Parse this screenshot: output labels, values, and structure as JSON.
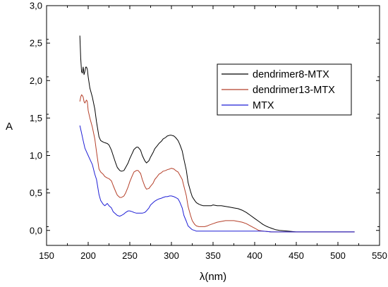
{
  "chart_data": {
    "type": "line",
    "title": "",
    "xlabel": "λ(nm)",
    "ylabel": "A",
    "xlim": [
      150,
      550
    ],
    "ylim": [
      -0.2,
      3.0
    ],
    "x_ticks": [
      150,
      200,
      250,
      300,
      350,
      400,
      450,
      500,
      550
    ],
    "x_tick_labels": [
      "150",
      "200",
      "250",
      "300",
      "350",
      "400",
      "450",
      "500",
      "550"
    ],
    "y_ticks": [
      0.0,
      0.5,
      1.0,
      1.5,
      2.0,
      2.5,
      3.0
    ],
    "y_tick_labels": [
      "0,0",
      "0,5",
      "1,0",
      "1,5",
      "2,0",
      "2,5",
      "3,0"
    ],
    "grid": false,
    "legend_position": "top-right",
    "series": [
      {
        "name": "dendrimer8-MTX",
        "color": "#000000",
        "x": [
          190,
          191,
          192,
          193,
          194,
          195,
          196,
          197,
          198,
          199,
          200,
          202,
          205,
          208,
          210,
          213,
          215,
          218,
          220,
          223,
          225,
          228,
          230,
          233,
          235,
          238,
          240,
          243,
          245,
          248,
          250,
          253,
          255,
          258,
          260,
          263,
          265,
          268,
          270,
          273,
          275,
          278,
          280,
          283,
          285,
          288,
          290,
          293,
          295,
          298,
          300,
          303,
          305,
          308,
          310,
          313,
          315,
          318,
          320,
          323,
          325,
          328,
          330,
          333,
          335,
          338,
          340,
          343,
          345,
          348,
          350,
          355,
          360,
          365,
          370,
          375,
          380,
          385,
          390,
          395,
          400,
          405,
          410,
          415,
          420,
          425,
          430,
          440,
          450,
          460,
          470,
          480,
          490,
          500,
          510,
          520
        ],
        "y": [
          2.6,
          2.3,
          2.12,
          2.1,
          2.18,
          2.08,
          2.12,
          2.18,
          2.18,
          2.15,
          2.05,
          1.9,
          1.78,
          1.62,
          1.45,
          1.25,
          1.2,
          1.18,
          1.17,
          1.16,
          1.14,
          1.07,
          1.0,
          0.9,
          0.84,
          0.8,
          0.79,
          0.8,
          0.84,
          0.9,
          0.96,
          1.03,
          1.08,
          1.11,
          1.11,
          1.07,
          1.0,
          0.93,
          0.9,
          0.93,
          0.98,
          1.04,
          1.09,
          1.13,
          1.16,
          1.19,
          1.22,
          1.24,
          1.26,
          1.27,
          1.27,
          1.26,
          1.24,
          1.2,
          1.15,
          1.06,
          0.95,
          0.8,
          0.64,
          0.52,
          0.45,
          0.4,
          0.37,
          0.35,
          0.34,
          0.33,
          0.33,
          0.33,
          0.33,
          0.33,
          0.34,
          0.33,
          0.33,
          0.32,
          0.31,
          0.3,
          0.29,
          0.27,
          0.24,
          0.2,
          0.16,
          0.12,
          0.08,
          0.05,
          0.03,
          0.01,
          0.0,
          -0.01,
          -0.02,
          -0.02,
          -0.02,
          -0.02,
          -0.02,
          -0.02,
          -0.02,
          -0.02
        ]
      },
      {
        "name": "dendrimer13-MTX",
        "color": "#b5402a",
        "x": [
          190,
          191,
          192,
          193,
          194,
          195,
          196,
          197,
          198,
          199,
          200,
          202,
          205,
          208,
          210,
          213,
          215,
          218,
          220,
          223,
          225,
          228,
          230,
          233,
          235,
          238,
          240,
          243,
          245,
          248,
          250,
          253,
          255,
          258,
          260,
          263,
          265,
          268,
          270,
          273,
          275,
          278,
          280,
          283,
          285,
          288,
          290,
          293,
          295,
          298,
          300,
          303,
          305,
          308,
          310,
          313,
          315,
          318,
          320,
          323,
          325,
          328,
          330,
          333,
          335,
          338,
          340,
          343,
          345,
          350,
          355,
          360,
          365,
          370,
          375,
          380,
          385,
          390,
          395,
          400,
          405,
          410,
          420,
          430,
          440,
          450,
          460,
          470,
          480,
          490,
          500,
          510,
          520
        ],
        "y": [
          1.72,
          1.78,
          1.81,
          1.8,
          1.78,
          1.72,
          1.7,
          1.72,
          1.74,
          1.72,
          1.6,
          1.5,
          1.38,
          1.22,
          1.05,
          0.82,
          0.78,
          0.75,
          0.72,
          0.7,
          0.69,
          0.66,
          0.6,
          0.52,
          0.47,
          0.44,
          0.44,
          0.46,
          0.5,
          0.58,
          0.65,
          0.73,
          0.78,
          0.8,
          0.8,
          0.76,
          0.68,
          0.59,
          0.55,
          0.56,
          0.59,
          0.63,
          0.68,
          0.72,
          0.75,
          0.77,
          0.79,
          0.8,
          0.81,
          0.82,
          0.83,
          0.82,
          0.8,
          0.78,
          0.74,
          0.68,
          0.59,
          0.46,
          0.32,
          0.2,
          0.13,
          0.08,
          0.06,
          0.05,
          0.05,
          0.05,
          0.05,
          0.06,
          0.07,
          0.09,
          0.11,
          0.12,
          0.13,
          0.13,
          0.13,
          0.12,
          0.11,
          0.09,
          0.06,
          0.03,
          0.0,
          -0.01,
          -0.02,
          -0.02,
          -0.02,
          -0.02,
          -0.02,
          -0.02,
          -0.02,
          -0.02,
          -0.02,
          -0.02,
          -0.02
        ]
      },
      {
        "name": "MTX",
        "color": "#1f1fd6",
        "x": [
          190,
          192,
          194,
          196,
          198,
          200,
          202,
          205,
          208,
          210,
          213,
          215,
          218,
          220,
          223,
          225,
          228,
          230,
          233,
          235,
          238,
          240,
          243,
          245,
          248,
          250,
          253,
          255,
          258,
          260,
          263,
          265,
          268,
          270,
          273,
          275,
          278,
          280,
          283,
          285,
          288,
          290,
          293,
          295,
          298,
          300,
          303,
          305,
          308,
          310,
          313,
          315,
          318,
          320,
          323,
          325,
          328,
          330,
          335,
          340,
          345,
          350,
          360,
          370,
          380,
          390,
          400,
          410,
          420,
          430,
          440,
          450,
          460,
          470,
          480,
          490,
          500,
          510,
          520
        ],
        "y": [
          1.4,
          1.3,
          1.2,
          1.1,
          1.05,
          1.0,
          0.95,
          0.88,
          0.75,
          0.68,
          0.48,
          0.4,
          0.35,
          0.33,
          0.36,
          0.33,
          0.3,
          0.25,
          0.22,
          0.2,
          0.19,
          0.2,
          0.22,
          0.24,
          0.26,
          0.26,
          0.25,
          0.24,
          0.23,
          0.23,
          0.23,
          0.23,
          0.24,
          0.26,
          0.3,
          0.34,
          0.37,
          0.39,
          0.41,
          0.42,
          0.43,
          0.44,
          0.45,
          0.45,
          0.46,
          0.46,
          0.45,
          0.44,
          0.42,
          0.38,
          0.3,
          0.2,
          0.12,
          0.06,
          0.03,
          0.01,
          0.0,
          -0.01,
          -0.01,
          -0.01,
          -0.01,
          -0.01,
          -0.01,
          -0.01,
          -0.01,
          -0.01,
          -0.01,
          -0.01,
          -0.02,
          -0.02,
          -0.02,
          -0.02,
          -0.02,
          -0.02,
          -0.02,
          -0.02,
          -0.02,
          -0.02,
          -0.02
        ]
      }
    ]
  }
}
